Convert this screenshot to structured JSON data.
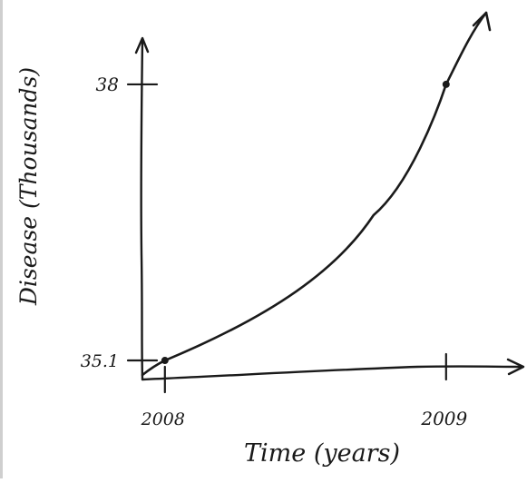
{
  "chart_data": {
    "type": "line",
    "xlabel": "Time (years)",
    "ylabel": "Disease (Thousands)",
    "x_ticks": [
      "2008",
      "2009"
    ],
    "y_ticks": [
      "35.1",
      "38"
    ],
    "series": [
      {
        "points": [
          {
            "x": 2008.0,
            "y": 35.1
          },
          {
            "x": 2009.0,
            "y": 38.0
          }
        ]
      }
    ],
    "xlim": [
      2007.92,
      2009.22
    ],
    "ylim": [
      34.9,
      38.6
    ],
    "grid": false
  },
  "colors": {
    "ink": "#1a1a1a",
    "background": "#ffffff"
  }
}
